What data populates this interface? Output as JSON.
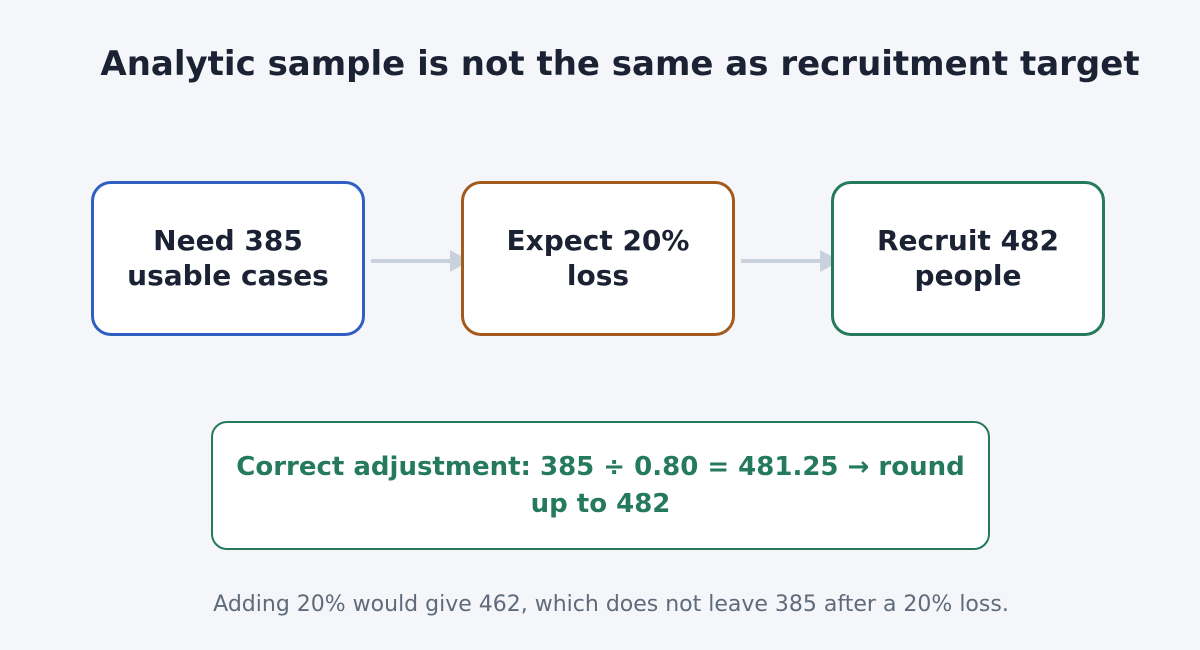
{
  "title": "Analytic sample is not the same as recruitment target",
  "nodes": [
    {
      "label": "Need 385 usable cases"
    },
    {
      "label": "Expect 20% loss"
    },
    {
      "label": "Recruit 482 people"
    }
  ],
  "callout": "Correct adjustment: 385 ÷ 0.80 = 481.25 → round up to 482",
  "footnote": "Adding 20% would give 462, which does not leave 385 after a 20% loss."
}
